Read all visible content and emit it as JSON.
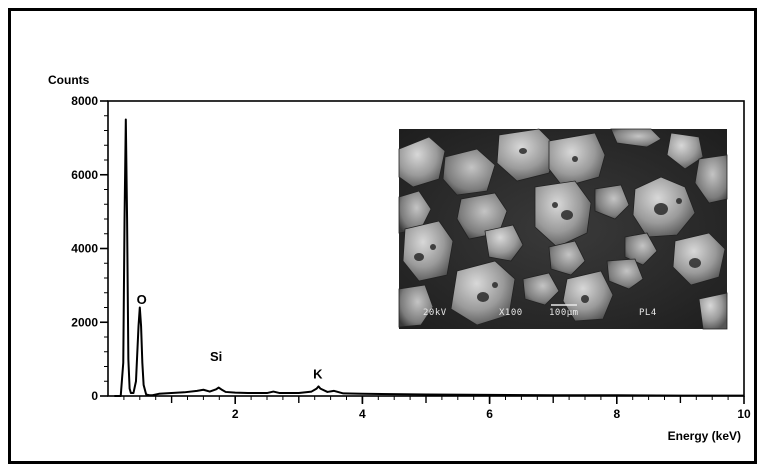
{
  "chart_data": {
    "type": "line",
    "title": "",
    "ylabel": "Counts",
    "xlabel": "Energy (keV)",
    "xlim": [
      0,
      10
    ],
    "ylim": [
      0,
      8000
    ],
    "x_ticks": [
      2,
      4,
      6,
      8,
      10
    ],
    "y_ticks": [
      0,
      2000,
      4000,
      6000,
      8000
    ],
    "grid": false,
    "legend": "none",
    "line_color": "#000000",
    "series": [
      {
        "x": [
          0.1,
          0.2,
          0.24,
          0.26,
          0.28,
          0.3,
          0.32,
          0.34,
          0.36,
          0.4,
          0.44,
          0.48,
          0.5,
          0.52,
          0.54,
          0.56,
          0.6,
          0.65,
          0.7,
          0.8,
          1.0,
          1.2,
          1.4,
          1.5,
          1.6,
          1.7,
          1.74,
          1.78,
          1.85,
          2.0,
          2.2,
          2.5,
          2.6,
          2.7,
          3.0,
          3.2,
          3.28,
          3.31,
          3.34,
          3.45,
          3.55,
          3.7,
          4.0,
          5.0,
          6.0,
          7.0,
          8.0,
          9.0,
          10.0
        ],
        "y": [
          0,
          0,
          900,
          4800,
          7500,
          4800,
          1000,
          200,
          80,
          80,
          400,
          1900,
          2400,
          1900,
          900,
          300,
          40,
          20,
          20,
          60,
          80,
          100,
          140,
          170,
          120,
          180,
          230,
          180,
          110,
          90,
          80,
          80,
          120,
          80,
          80,
          120,
          200,
          260,
          200,
          110,
          140,
          70,
          60,
          40,
          30,
          20,
          20,
          10,
          10
        ]
      }
    ],
    "annotations": [
      {
        "text": "O",
        "x": 0.53,
        "y": 2500
      },
      {
        "text": "Si",
        "x": 1.7,
        "y": 950
      },
      {
        "text": "K",
        "x": 3.3,
        "y": 480
      }
    ]
  },
  "inset": {
    "caption_items": [
      "20kV",
      "X100",
      "100µm",
      "PL4"
    ]
  }
}
